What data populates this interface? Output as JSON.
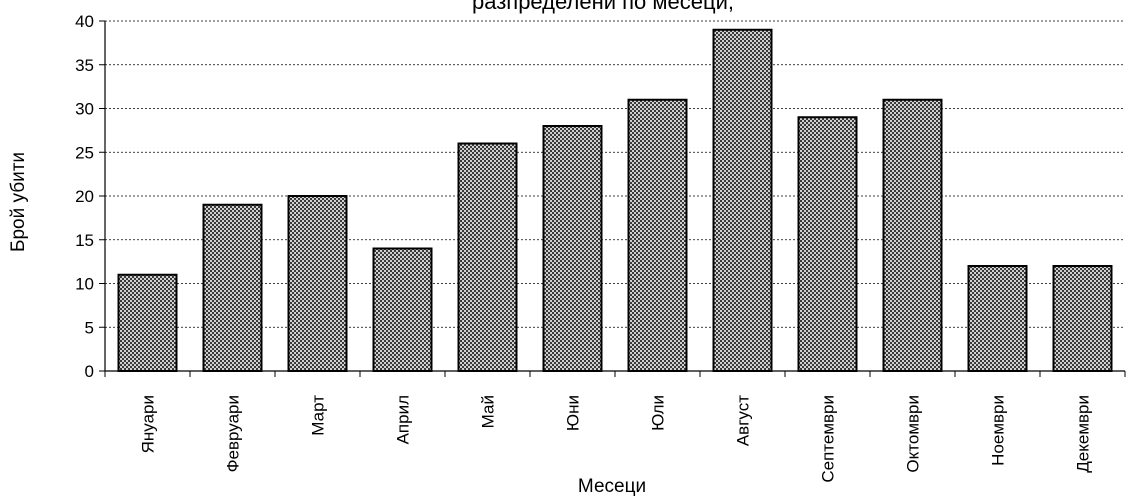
{
  "chart_data": {
    "type": "bar",
    "title": "разпределени по месеци;",
    "xlabel": "Месеци",
    "ylabel": "Брой убити",
    "categories": [
      "Януари",
      "Февруари",
      "Март",
      "Април",
      "Май",
      "Юни",
      "Юли",
      "Август",
      "Септември",
      "Октомври",
      "Ноември",
      "Декември"
    ],
    "values": [
      11,
      19,
      20,
      14,
      26,
      28,
      31,
      39,
      29,
      31,
      12,
      12
    ],
    "ylim": [
      0,
      40
    ],
    "yticks": [
      0,
      5,
      10,
      15,
      20,
      25,
      30,
      35,
      40
    ],
    "grid": true,
    "bar_fill": "#7f7f7f",
    "bar_stroke": "#000000",
    "grid_color": "#000000"
  }
}
